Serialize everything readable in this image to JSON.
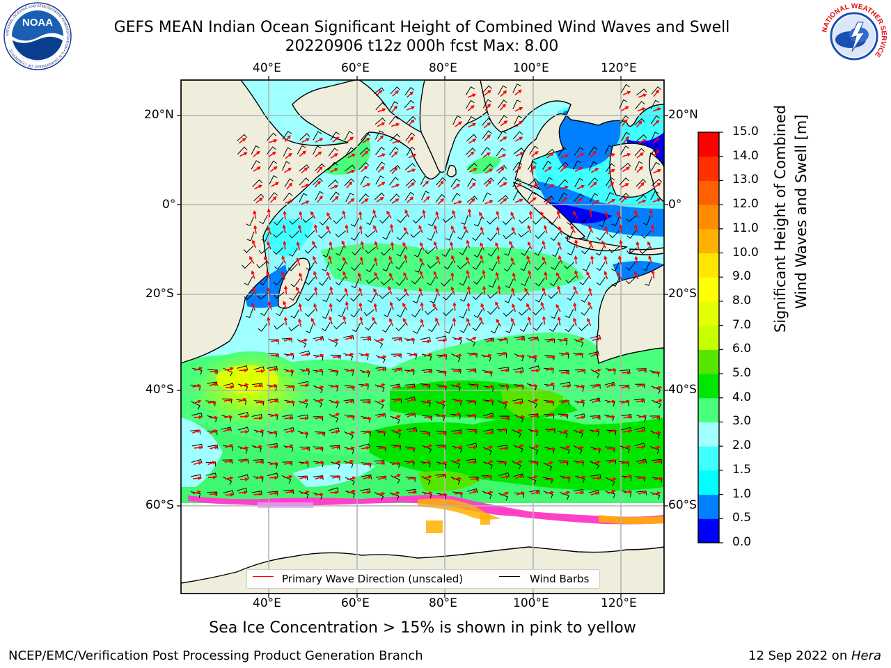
{
  "title_line1": "GEFS MEAN Indian Ocean Significant Height of Combined Wind Waves and Swell",
  "title_line2": "20220906 t12z 000h fcst   Max: 8.00",
  "caption": "Sea Ice Concentration > 15% is shown in pink to yellow",
  "footer_left": "NCEP/EMC/Verification Post Processing Product Generation Branch",
  "footer_date": "12 Sep 2022 on ",
  "footer_machine": "Hera",
  "noaa_logo_text": "NOAA",
  "noaa_ring_text": "NATIONAL OCEANIC AND ATMOSPHERIC ADMINISTRATION • U.S. DEPARTMENT OF COMMERCE",
  "nws_ring_text": "NATIONAL WEATHER SERVICE",
  "map": {
    "lon_ticks": [
      "40°E",
      "60°E",
      "80°E",
      "100°E",
      "120°E"
    ],
    "lat_ticks": [
      "20°N",
      "0°",
      "20°S",
      "40°S",
      "60°S"
    ],
    "legend": {
      "wave_direction": "Primary Wave Direction (unscaled)",
      "wind_barbs": "Wind Barbs",
      "wave_color": "#ff0000",
      "barb_color": "#000000"
    }
  },
  "colorbar": {
    "title_line1": "Significant Height of Combined",
    "title_line2": "Wind Waves and Swell [m]",
    "tick_labels": [
      "0.0",
      "0.5",
      "1.0",
      "1.5",
      "2.0",
      "3.0",
      "4.0",
      "5.0",
      "6.0",
      "7.0",
      "8.0",
      "9.0",
      "10.0",
      "11.0",
      "12.0",
      "13.0",
      "14.0",
      "15.0"
    ],
    "colors": [
      "#0000ff",
      "#0080ff",
      "#00ffff",
      "#40ffff",
      "#a0ffff",
      "#4aff7c",
      "#00e600",
      "#55e600",
      "#c8ff00",
      "#e6ff00",
      "#ffff00",
      "#ffe600",
      "#ffb000",
      "#ff8c00",
      "#ff6000",
      "#ff3000",
      "#ff0000"
    ]
  }
}
